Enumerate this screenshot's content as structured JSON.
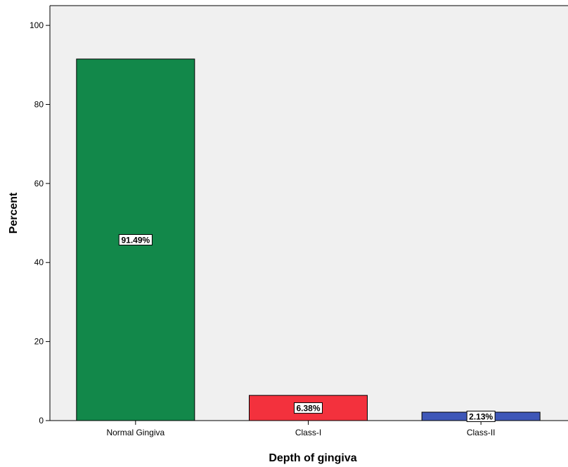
{
  "chart_data": {
    "type": "bar",
    "categories": [
      "Normal Gingiva",
      "Class-I",
      "Class-II"
    ],
    "values": [
      91.49,
      6.38,
      2.13
    ],
    "data_labels": [
      "91.49%",
      "6.38%",
      "2.13%"
    ],
    "colors": [
      "#12884a",
      "#f3313d",
      "#3e57b8"
    ],
    "title": "",
    "xlabel": "Depth of gingiva",
    "ylabel": "Percent",
    "ylim": [
      0,
      105
    ],
    "yticks": [
      0,
      20,
      40,
      60,
      80,
      100
    ],
    "ytick_labels": [
      "0",
      "20",
      "40",
      "60",
      "80",
      "100"
    ],
    "grid": false,
    "plot_background": "#f0f0f0"
  }
}
